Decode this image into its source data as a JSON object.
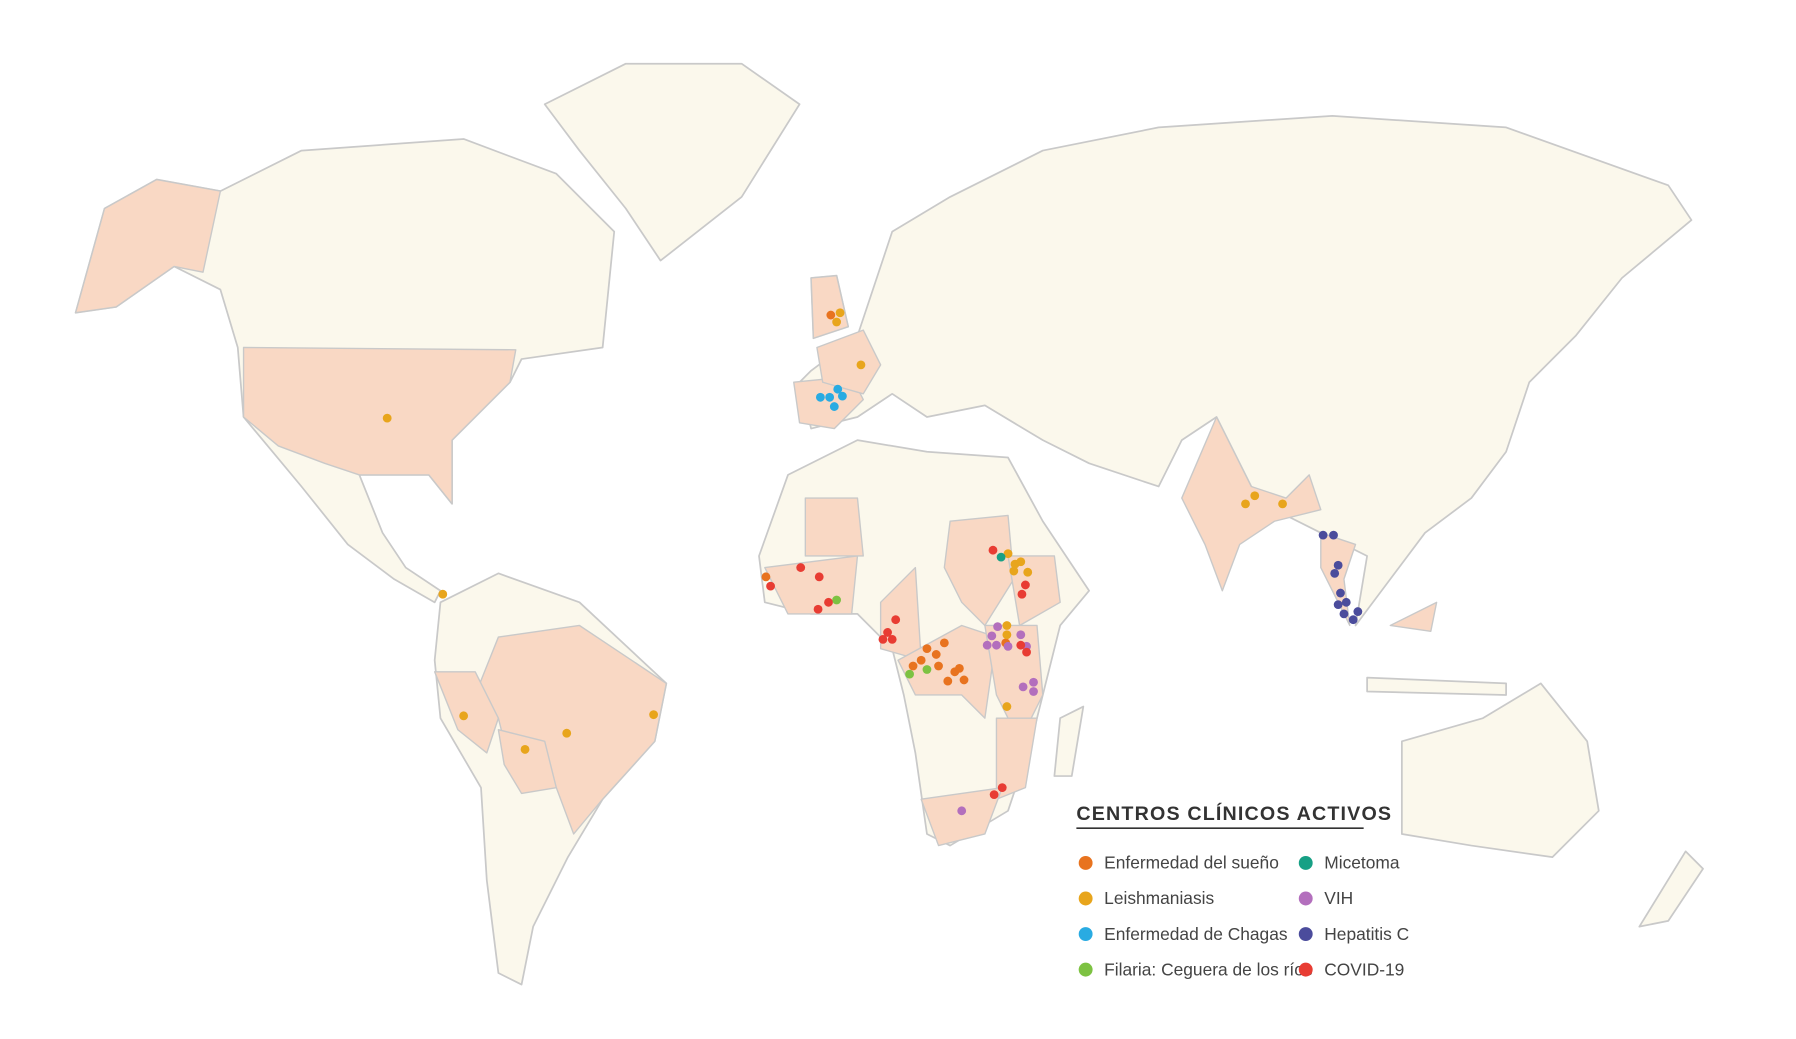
{
  "legend": {
    "title": "CENTROS CLÍNICOS ACTIVOS",
    "items": [
      {
        "label": "Enfermedad del sueño",
        "color": "#e8731f"
      },
      {
        "label": "Leishmaniasis",
        "color": "#e8a51c"
      },
      {
        "label": "Enfermedad de Chagas",
        "color": "#29abe2"
      },
      {
        "label": "Filaria: Ceguera de los ríos",
        "color": "#7dc242"
      },
      {
        "label": "Micetoma",
        "color": "#17a085"
      },
      {
        "label": "VIH",
        "color": "#b36fbd"
      },
      {
        "label": "Hepatitis C",
        "color": "#4b4c9c"
      },
      {
        "label": "COVID-19",
        "color": "#e83c33"
      }
    ]
  }
}
